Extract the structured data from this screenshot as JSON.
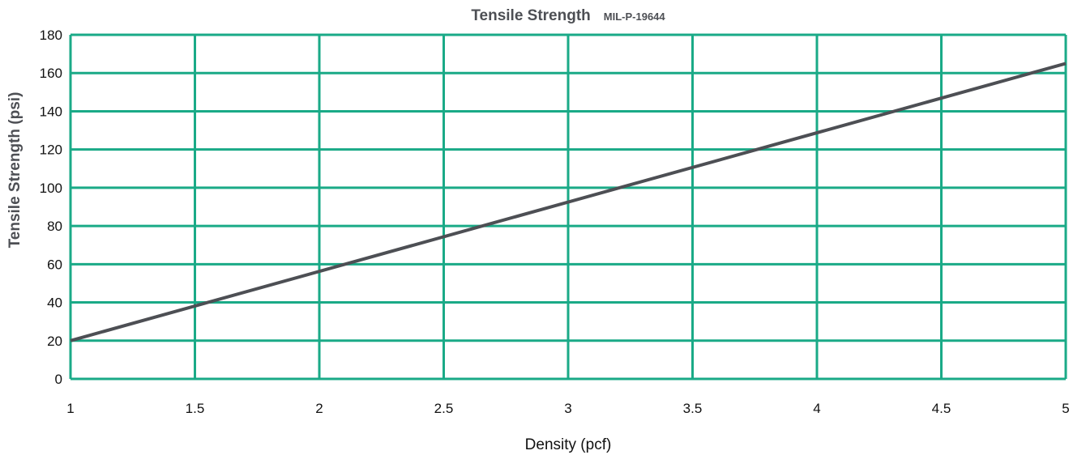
{
  "chart_data": {
    "type": "line",
    "title": "Tensile Strength",
    "subtitle": "MIL-P-19644",
    "xlabel": "Density (pcf)",
    "ylabel": "Tensile Strength (psi)",
    "xlim": [
      1,
      5
    ],
    "ylim": [
      0,
      180
    ],
    "x_ticks": [
      1,
      1.5,
      2,
      2.5,
      3,
      3.5,
      4,
      4.5,
      5
    ],
    "x_tick_labels": [
      "1",
      "1.5",
      "2",
      "2.5",
      "3",
      "3.5",
      "4",
      "4.5",
      "5"
    ],
    "y_ticks": [
      0,
      20,
      40,
      60,
      80,
      100,
      120,
      140,
      160,
      180
    ],
    "y_tick_labels": [
      "0",
      "20",
      "40",
      "60",
      "80",
      "100",
      "120",
      "140",
      "160",
      "180"
    ],
    "grid": true,
    "series": [
      {
        "x": [
          1,
          5
        ],
        "y": [
          20,
          165
        ]
      }
    ]
  },
  "colors": {
    "grid": "#1aaa87",
    "line": "#4d4f54",
    "title": "#4d4f54"
  }
}
